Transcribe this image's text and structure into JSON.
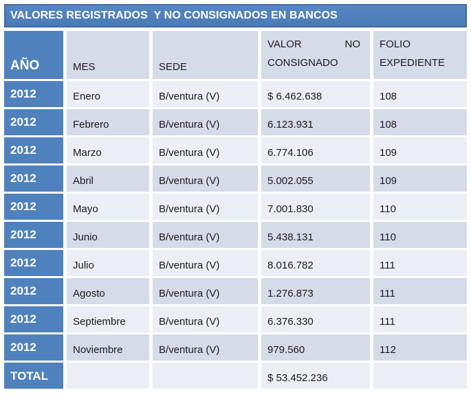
{
  "title": "VALORES REGISTRADOS  Y NO CONSIGNADOS EN BANCOS",
  "colors": {
    "accent_blue": "#4F81BD",
    "title_border_blue": "#3C69A5",
    "band_dark": "#D5DBE8",
    "band_light": "#EBEEF5",
    "text_dark": "#1B1B1B",
    "text_white": "#FFFFFF"
  },
  "table": {
    "headers": {
      "ano": "AÑO",
      "mes": "MES",
      "sede": "SEDE",
      "valor_line1_left": "VALOR",
      "valor_line1_right": "NO",
      "valor_line2": "CONSIGNADO",
      "folio": "FOLIO EXPEDIENTE"
    },
    "rows": [
      {
        "ano": "2012",
        "mes": "Enero",
        "sede": "B/ventura (V)",
        "valor": "$ 6.462.638",
        "folio": "108"
      },
      {
        "ano": "2012",
        "mes": "Febrero",
        "sede": "B/ventura (V)",
        "valor": "6.123.931",
        "folio": "108"
      },
      {
        "ano": "2012",
        "mes": "Marzo",
        "sede": "B/ventura (V)",
        "valor": "6.774.106",
        "folio": "109"
      },
      {
        "ano": "2012",
        "mes": "Abril",
        "sede": "B/ventura (V)",
        "valor": "5.002.055",
        "folio": "109"
      },
      {
        "ano": "2012",
        "mes": "Mayo",
        "sede": "B/ventura (V)",
        "valor": "7.001.830",
        "folio": "110"
      },
      {
        "ano": "2012",
        "mes": "Junio",
        "sede": "B/ventura (V)",
        "valor": "5.438.131",
        "folio": "110"
      },
      {
        "ano": "2012",
        "mes": "Julio",
        "sede": "B/ventura (V)",
        "valor": "8.016.782",
        "folio": "111"
      },
      {
        "ano": "2012",
        "mes": "Agosto",
        "sede": "B/ventura (V)",
        "valor": "1.276.873",
        "folio": "111"
      },
      {
        "ano": "2012",
        "mes": "Septiembre",
        "sede": "B/ventura (V)",
        "valor": "6.376.330",
        "folio": "111"
      },
      {
        "ano": "2012",
        "mes": "Noviembre",
        "sede": "B/ventura (V)",
        "valor": "979.560",
        "folio": "112"
      }
    ],
    "total": {
      "label": "TOTAL",
      "mes": "",
      "sede": "",
      "valor": "$ 53.452.236",
      "folio": ""
    }
  }
}
